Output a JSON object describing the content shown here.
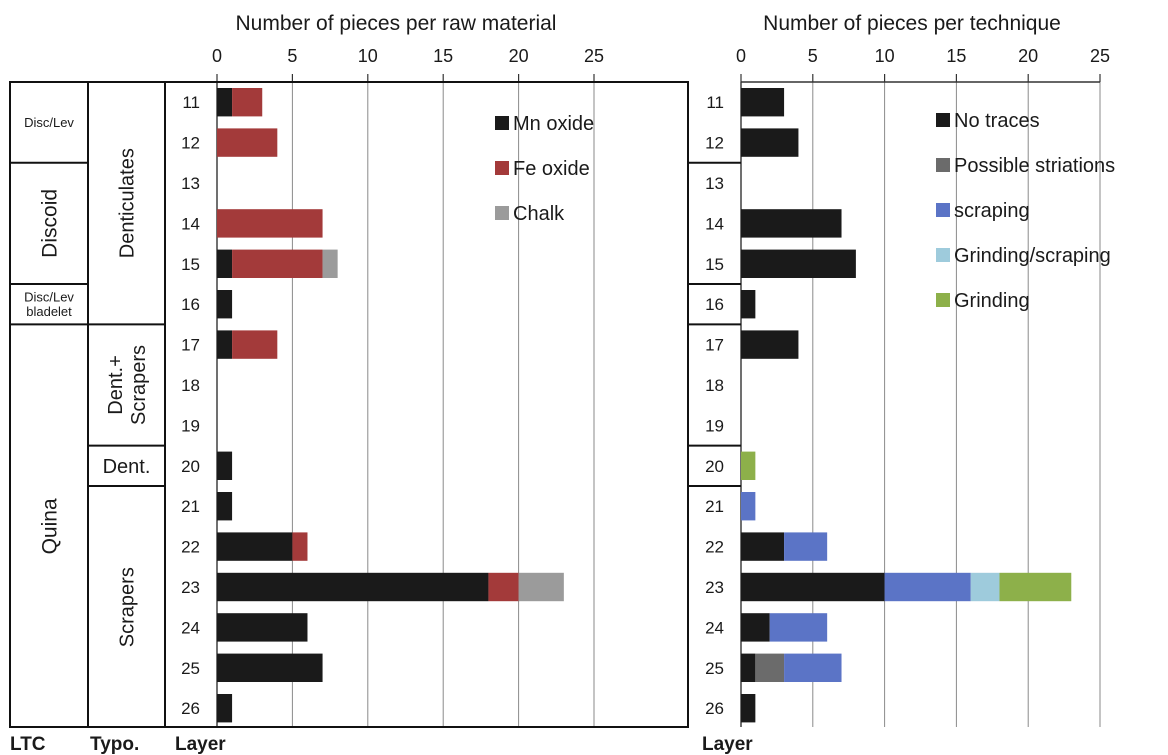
{
  "chart_data": [
    {
      "type": "bar",
      "stacked": true,
      "orientation": "horizontal",
      "title": "Number of pieces per raw material",
      "ylabel": "Layer",
      "categories": [
        "11",
        "12",
        "13",
        "14",
        "15",
        "16",
        "17",
        "18",
        "19",
        "20",
        "21",
        "22",
        "23",
        "24",
        "25",
        "26"
      ],
      "xlim": [
        0,
        25
      ],
      "xticks": [
        "0",
        "5",
        "10",
        "15",
        "20",
        "25"
      ],
      "grid": true,
      "legend_position": "top-right",
      "series": [
        {
          "name": "Mn oxide",
          "color": "#1a1a1a",
          "values": [
            1,
            0,
            0,
            0,
            1,
            1,
            1,
            0,
            0,
            1,
            1,
            5,
            18,
            6,
            7,
            1
          ]
        },
        {
          "name": "Fe oxide",
          "color": "#a33a3a",
          "values": [
            2,
            4,
            0,
            7,
            6,
            0,
            3,
            0,
            0,
            0,
            0,
            1,
            2,
            0,
            0,
            0
          ]
        },
        {
          "name": "Chalk",
          "color": "#9b9b9b",
          "values": [
            0,
            0,
            0,
            0,
            1,
            0,
            0,
            0,
            0,
            0,
            0,
            0,
            3,
            0,
            0,
            0
          ]
        }
      ]
    },
    {
      "type": "bar",
      "stacked": true,
      "orientation": "horizontal",
      "title": "Number of pieces per technique",
      "ylabel": "Layer",
      "categories": [
        "11",
        "12",
        "13",
        "14",
        "15",
        "16",
        "17",
        "18",
        "19",
        "20",
        "21",
        "22",
        "23",
        "24",
        "25",
        "26"
      ],
      "xlim": [
        0,
        25
      ],
      "xticks": [
        "0",
        "5",
        "10",
        "15",
        "20",
        "25"
      ],
      "grid": true,
      "legend_position": "top-right",
      "series": [
        {
          "name": "No traces",
          "color": "#1a1a1a",
          "values": [
            3,
            4,
            0,
            7,
            8,
            1,
            4,
            0,
            0,
            0,
            0,
            3,
            10,
            2,
            1,
            1
          ]
        },
        {
          "name": "Possible striations",
          "color": "#6b6b6b",
          "values": [
            0,
            0,
            0,
            0,
            0,
            0,
            0,
            0,
            0,
            0,
            0,
            0,
            0,
            0,
            2,
            0
          ]
        },
        {
          "name": "scraping",
          "color": "#5b74c6",
          "values": [
            0,
            0,
            0,
            0,
            0,
            0,
            0,
            0,
            0,
            0,
            1,
            3,
            6,
            4,
            4,
            0
          ]
        },
        {
          "name": "Grinding/scraping",
          "color": "#9ecbdc",
          "values": [
            0,
            0,
            0,
            0,
            0,
            0,
            0,
            0,
            0,
            0,
            0,
            0,
            2,
            0,
            0,
            0
          ]
        },
        {
          "name": "Grinding",
          "color": "#8db04a",
          "values": [
            0,
            0,
            0,
            0,
            0,
            0,
            0,
            0,
            0,
            1,
            0,
            0,
            5,
            0,
            0,
            0
          ]
        }
      ]
    }
  ],
  "columns": {
    "ltc_label": "LTC",
    "typo_label": "Typo.",
    "ltc_groups": [
      {
        "label": "Disc/Lev",
        "from": "11",
        "to": "12",
        "vertical": false,
        "size": "small"
      },
      {
        "label": "Discoid",
        "from": "13",
        "to": "15",
        "vertical": true,
        "size": "large"
      },
      {
        "label": "Disc/Lev\nbladelet",
        "from": "16",
        "to": "16",
        "vertical": false,
        "size": "small"
      },
      {
        "label": "Quina",
        "from": "17",
        "to": "26",
        "vertical": true,
        "size": "large"
      }
    ],
    "typo_groups": [
      {
        "label": "Denticulates",
        "from": "11",
        "to": "16",
        "vertical": true
      },
      {
        "label": "Dent.+\nScrapers",
        "from": "17",
        "to": "19",
        "vertical": true
      },
      {
        "label": "Dent.",
        "from": "20",
        "to": "20",
        "vertical": false
      },
      {
        "label": "Scrapers",
        "from": "21",
        "to": "26",
        "vertical": true
      }
    ]
  }
}
